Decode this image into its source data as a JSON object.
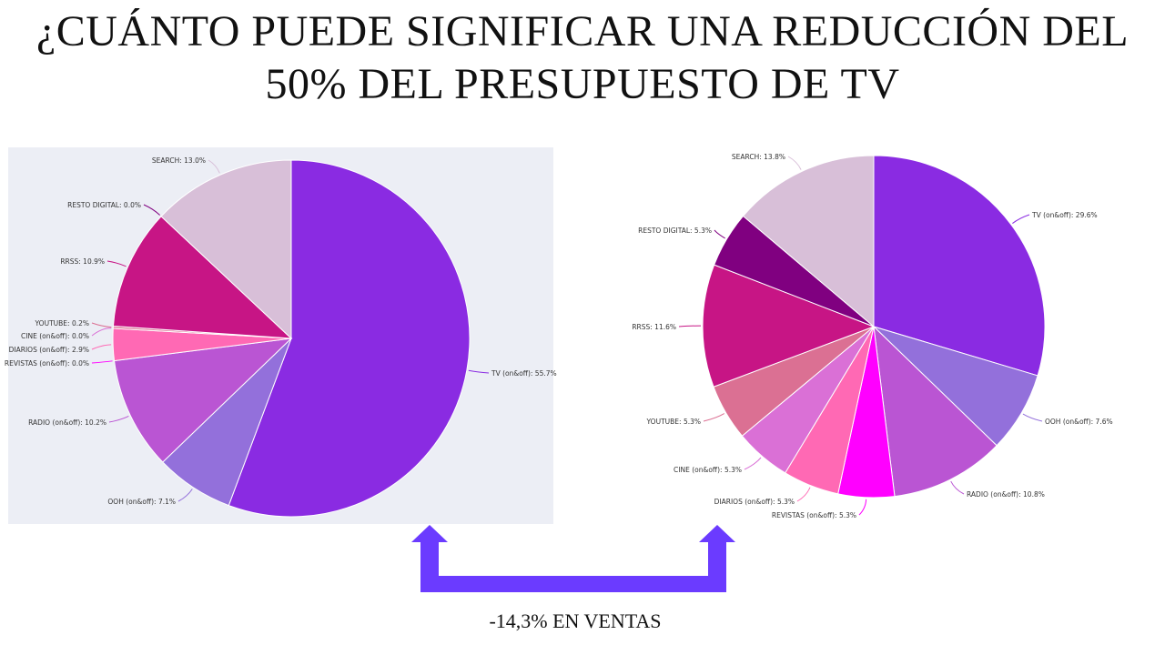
{
  "title": {
    "line1": "¿CUÁNTO PUEDE SIGNIFICAR UNA REDUCCIÓN DEL",
    "line2": "50% DEL PRESUPUESTO DE TV"
  },
  "caption": "-14,3% EN VENTAS",
  "colors": {
    "left_panel_bg": "#eceef5",
    "arrow": "#6b3bff"
  },
  "chart_data": [
    {
      "type": "pie",
      "title": "",
      "slices": [
        {
          "name": "TV (on&off)",
          "value": 55.7,
          "label": "TV (on&off): 55.7%",
          "color": "#8a2be2"
        },
        {
          "name": "OOH (on&off)",
          "value": 7.1,
          "label": "OOH (on&off): 7.1%",
          "color": "#9370db"
        },
        {
          "name": "RADIO (on&off)",
          "value": 10.2,
          "label": "RADIO (on&off): 10.2%",
          "color": "#ba55d3"
        },
        {
          "name": "REVISTAS (on&off)",
          "value": 0.0,
          "label": "REVISTAS (on&off): 0.0%",
          "color": "#ff00ff"
        },
        {
          "name": "DIARIOS (on&off)",
          "value": 2.9,
          "label": "DIARIOS (on&off): 2.9%",
          "color": "#ff69b4"
        },
        {
          "name": "CINE (on&off)",
          "value": 0.0,
          "label": "CINE (on&off): 0.0%",
          "color": "#da70d6"
        },
        {
          "name": "YOUTUBE",
          "value": 0.2,
          "label": "YOUTUBE: 0.2%",
          "color": "#db7093"
        },
        {
          "name": "RRSS",
          "value": 10.9,
          "label": "RRSS: 10.9%",
          "color": "#c71585"
        },
        {
          "name": "RESTO DIGITAL",
          "value": 0.0,
          "label": "RESTO DIGITAL: 0.0%",
          "color": "#800080"
        },
        {
          "name": "SEARCH",
          "value": 13.0,
          "label": "SEARCH: 13.0%",
          "color": "#d8bfd8"
        }
      ]
    },
    {
      "type": "pie",
      "title": "",
      "slices": [
        {
          "name": "TV (on&off)",
          "value": 29.6,
          "label": "TV (on&off): 29.6%",
          "color": "#8a2be2"
        },
        {
          "name": "OOH (on&off)",
          "value": 7.6,
          "label": "OOH (on&off): 7.6%",
          "color": "#9370db"
        },
        {
          "name": "RADIO (on&off)",
          "value": 10.8,
          "label": "RADIO (on&off): 10.8%",
          "color": "#ba55d3"
        },
        {
          "name": "REVISTAS (on&off)",
          "value": 5.3,
          "label": "REVISTAS (on&off): 5.3%",
          "color": "#ff00ff"
        },
        {
          "name": "DIARIOS (on&off)",
          "value": 5.3,
          "label": "DIARIOS (on&off): 5.3%",
          "color": "#ff69b4"
        },
        {
          "name": "CINE (on&off)",
          "value": 5.3,
          "label": "CINE (on&off): 5.3%",
          "color": "#da70d6"
        },
        {
          "name": "YOUTUBE",
          "value": 5.3,
          "label": "YOUTUBE: 5.3%",
          "color": "#db7093"
        },
        {
          "name": "RRSS",
          "value": 11.6,
          "label": "RRSS: 11.6%",
          "color": "#c71585"
        },
        {
          "name": "RESTO DIGITAL",
          "value": 5.3,
          "label": "RESTO DIGITAL: 5.3%",
          "color": "#800080"
        },
        {
          "name": "SEARCH",
          "value": 13.8,
          "label": "SEARCH: 13.8%",
          "color": "#d8bfd8"
        }
      ]
    }
  ]
}
